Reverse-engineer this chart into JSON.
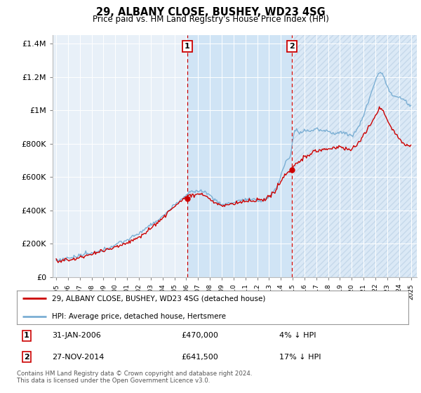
{
  "title": "29, ALBANY CLOSE, BUSHEY, WD23 4SG",
  "subtitle": "Price paid vs. HM Land Registry's House Price Index (HPI)",
  "legend_line1": "29, ALBANY CLOSE, BUSHEY, WD23 4SG (detached house)",
  "legend_line2": "HPI: Average price, detached house, Hertsmere",
  "annotation1_label": "1",
  "annotation1_date": "31-JAN-2006",
  "annotation1_price": "£470,000",
  "annotation1_hpi": "4% ↓ HPI",
  "annotation2_label": "2",
  "annotation2_date": "27-NOV-2014",
  "annotation2_price": "£641,500",
  "annotation2_hpi": "17% ↓ HPI",
  "footnote": "Contains HM Land Registry data © Crown copyright and database right 2024.\nThis data is licensed under the Open Government Licence v3.0.",
  "sale1_x": 2006.08,
  "sale1_y": 470000,
  "sale2_x": 2014.92,
  "sale2_y": 641500,
  "hpi_color": "#7bafd4",
  "price_color": "#cc0000",
  "vline_color": "#cc0000",
  "background_color": "#ffffff",
  "plot_bg_color": "#e8f0f8",
  "shade_color": "#d0e4f5",
  "ylim": [
    0,
    1450000
  ],
  "xlim_start": 1994.7,
  "xlim_end": 2025.5,
  "yticks": [
    0,
    200000,
    400000,
    600000,
    800000,
    1000000,
    1200000,
    1400000
  ]
}
